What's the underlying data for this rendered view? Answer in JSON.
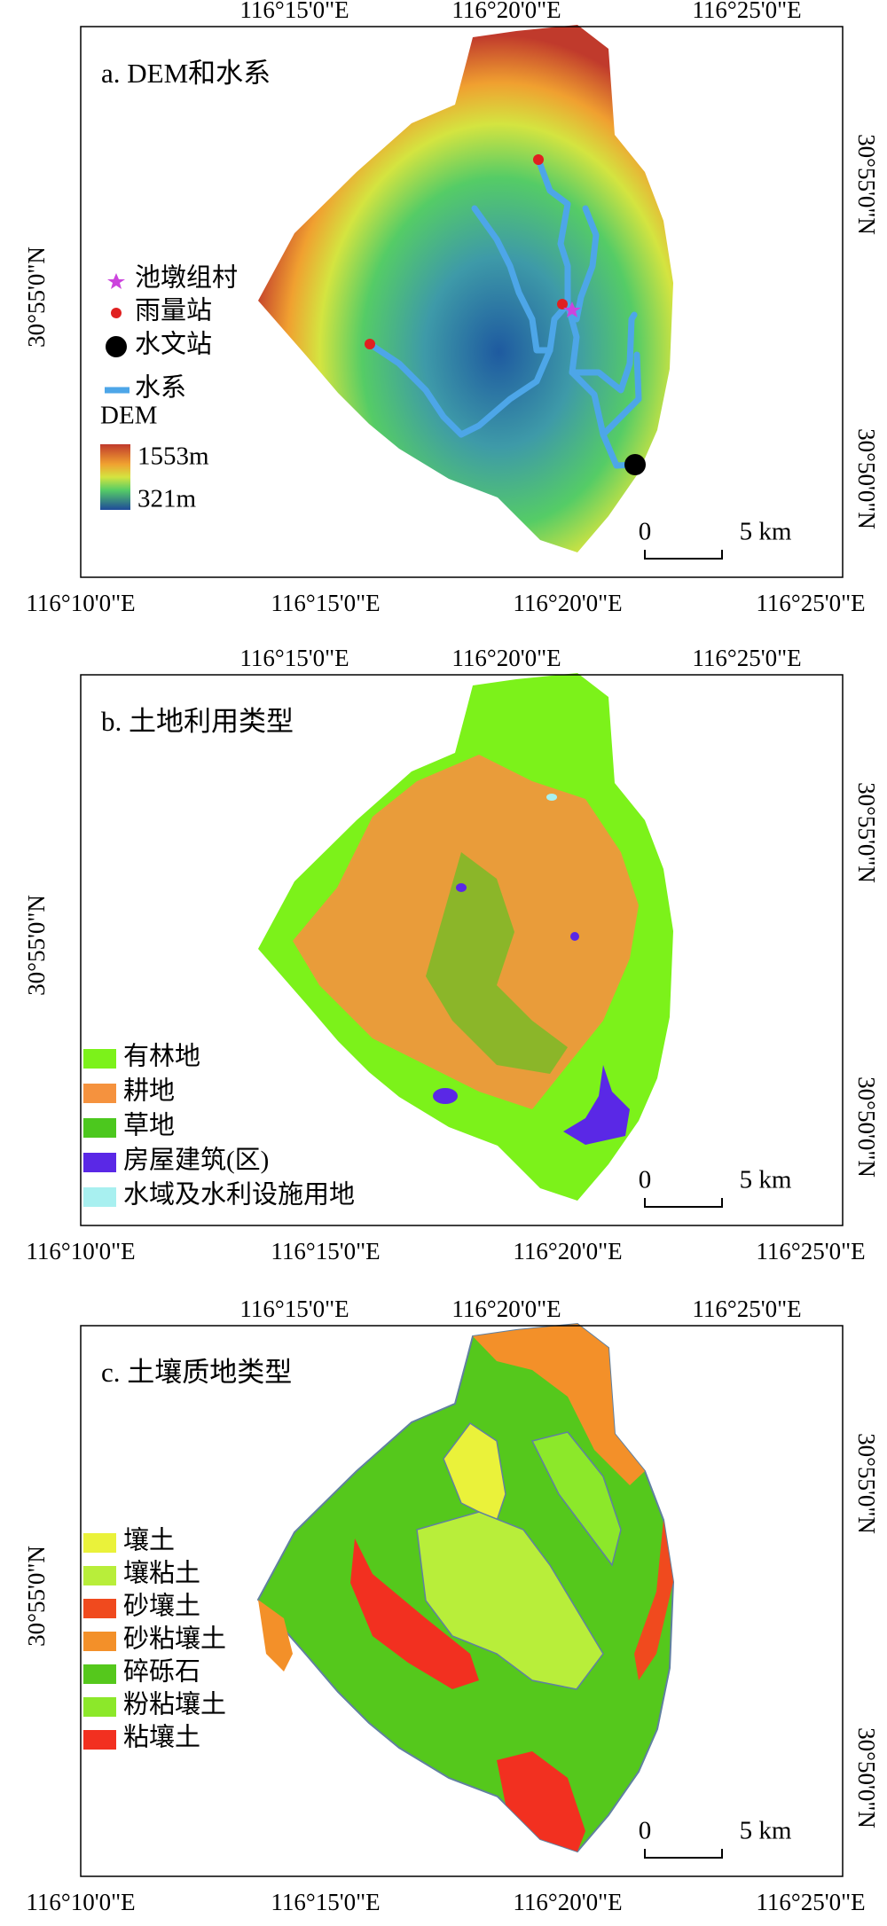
{
  "panels": [
    {
      "title": "a. DEM和水系",
      "top_ticks": [
        "116°15'0\"E",
        "116°20'0\"E",
        "116°25'0\"E"
      ],
      "bottom_ticks": [
        "116°10'0\"E",
        "116°15'0\"E",
        "116°20'0\"E",
        "116°25'0\"E"
      ],
      "left_ticks": [
        "30°55'0\"N"
      ],
      "right_ticks": [
        "30°55'0\"N",
        "30°50'0\"N"
      ],
      "legend": [
        {
          "label": "池墩组村",
          "color": "#cc44dd"
        },
        {
          "label": "雨量站",
          "color": "#e02020"
        },
        {
          "label": "水文站",
          "color": "#000000"
        },
        {
          "label": "水系",
          "color": "#4da6e8"
        }
      ],
      "colorbar": {
        "title": "DEM",
        "max": "1553m",
        "min": "321m"
      },
      "scale": [
        "0",
        "5 km"
      ]
    },
    {
      "title": "b. 土地利用类型",
      "top_ticks": [
        "116°15'0\"E",
        "116°20'0\"E",
        "116°25'0\"E"
      ],
      "bottom_ticks": [
        "116°10'0\"E",
        "116°15'0\"E",
        "116°20'0\"E",
        "116°25'0\"E"
      ],
      "left_ticks": [
        "30°55'0\"N"
      ],
      "right_ticks": [
        "30°55'0\"N",
        "30°50'0\"N"
      ],
      "legend": [
        {
          "label": "有林地",
          "color": "#7cf21a"
        },
        {
          "label": "耕地",
          "color": "#f5923e"
        },
        {
          "label": "草地",
          "color": "#4cc81e"
        },
        {
          "label": "房屋建筑(区)",
          "color": "#5a28e6"
        },
        {
          "label": "水域及水利设施用地",
          "color": "#a8f0f0"
        }
      ],
      "scale": [
        "0",
        "5 km"
      ]
    },
    {
      "title": "c. 土壤质地类型",
      "top_ticks": [
        "116°15'0\"E",
        "116°20'0\"E",
        "116°25'0\"E"
      ],
      "bottom_ticks": [
        "116°10'0\"E",
        "116°15'0\"E",
        "116°20'0\"E",
        "116°25'0\"E"
      ],
      "left_ticks": [
        "30°55'0\"N"
      ],
      "right_ticks": [
        "30°55'0\"N",
        "30°50'0\"N"
      ],
      "legend": [
        {
          "label": "壤土",
          "color": "#eaf23a"
        },
        {
          "label": "壤粘土",
          "color": "#b8ee3a"
        },
        {
          "label": "砂壤土",
          "color": "#f04a1e"
        },
        {
          "label": "砂粘壤土",
          "color": "#f39029"
        },
        {
          "label": "碎砾石",
          "color": "#55c81c"
        },
        {
          "label": "粉粘壤土",
          "color": "#8ce82a"
        },
        {
          "label": "粘壤土",
          "color": "#f23020"
        }
      ],
      "scale": [
        "0",
        "5 km"
      ]
    }
  ]
}
